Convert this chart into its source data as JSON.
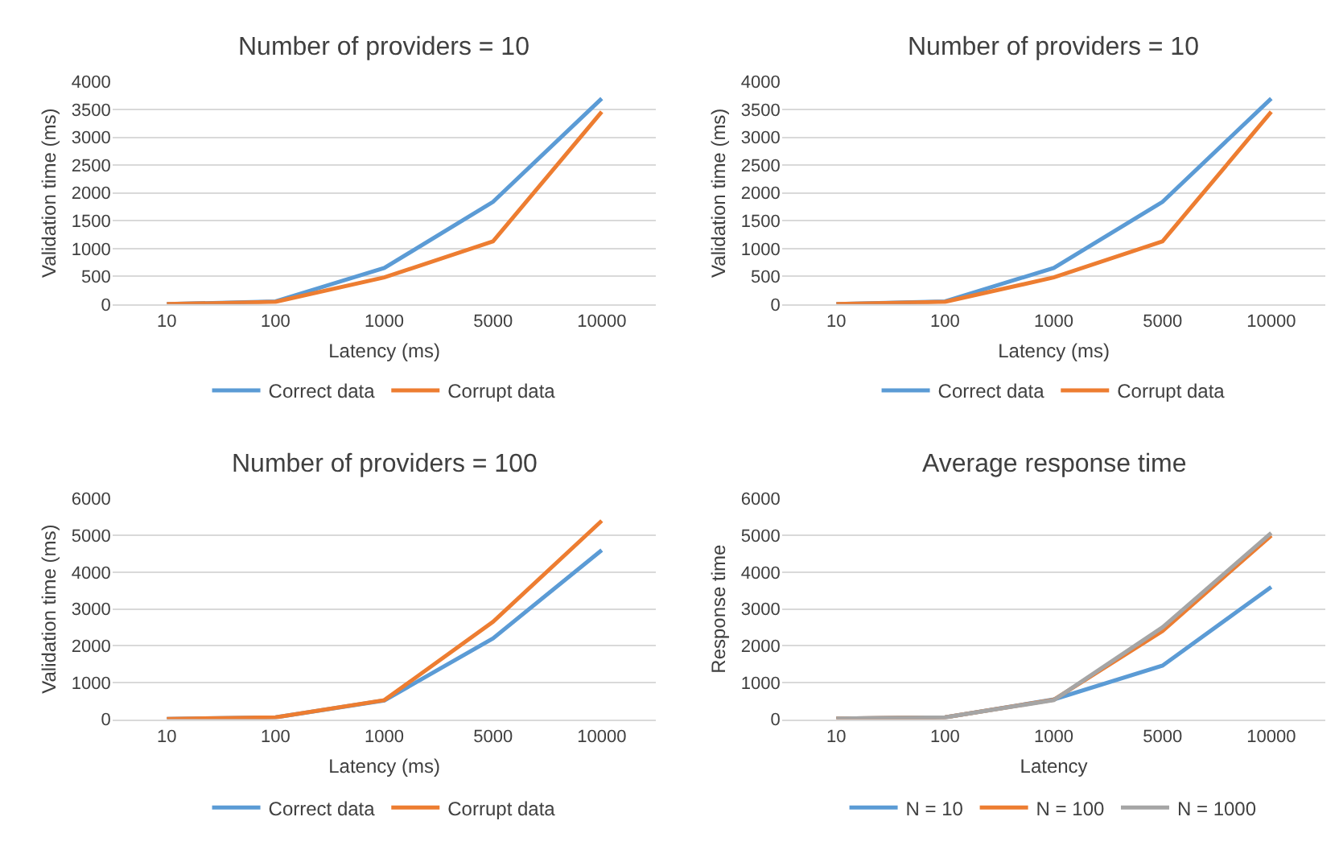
{
  "chart_data": [
    {
      "type": "line",
      "title": "Number of providers = 10",
      "xlabel": "Latency (ms)",
      "ylabel": "Validation time (ms)",
      "categories": [
        "10",
        "100",
        "1000",
        "5000",
        "10000"
      ],
      "ylim": [
        0,
        4000
      ],
      "yticks": [
        0,
        500,
        1000,
        1500,
        2000,
        2500,
        3000,
        3500,
        4000
      ],
      "grid": "y",
      "legend": "bottom",
      "series": [
        {
          "name": "Correct data",
          "color": "#5b9bd5",
          "values": [
            0,
            50,
            650,
            1840,
            3700
          ]
        },
        {
          "name": "Corrupt data",
          "color": "#ed7d31",
          "values": [
            0,
            40,
            480,
            1130,
            3460
          ]
        }
      ]
    },
    {
      "type": "line",
      "title": "Number of providers = 10",
      "xlabel": "Latency (ms)",
      "ylabel": "Validation time (ms)",
      "categories": [
        "10",
        "100",
        "1000",
        "5000",
        "10000"
      ],
      "ylim": [
        0,
        4000
      ],
      "yticks": [
        0,
        500,
        1000,
        1500,
        2000,
        2500,
        3000,
        3500,
        4000
      ],
      "grid": "y",
      "legend": "bottom",
      "series": [
        {
          "name": "Correct data",
          "color": "#5b9bd5",
          "values": [
            0,
            50,
            650,
            1840,
            3700
          ]
        },
        {
          "name": "Corrupt data",
          "color": "#ed7d31",
          "values": [
            0,
            40,
            480,
            1130,
            3460
          ]
        }
      ]
    },
    {
      "type": "line",
      "title": "Number of providers = 100",
      "xlabel": "Latency (ms)",
      "ylabel": "Validation time (ms)",
      "categories": [
        "10",
        "100",
        "1000",
        "5000",
        "10000"
      ],
      "ylim": [
        0,
        6000
      ],
      "yticks": [
        0,
        1000,
        2000,
        3000,
        4000,
        5000,
        6000
      ],
      "grid": "y",
      "legend": "bottom",
      "series": [
        {
          "name": "Correct data",
          "color": "#5b9bd5",
          "values": [
            10,
            50,
            510,
            2200,
            4600
          ]
        },
        {
          "name": "Corrupt data",
          "color": "#ed7d31",
          "values": [
            10,
            50,
            520,
            2650,
            5400
          ]
        }
      ]
    },
    {
      "type": "line",
      "title": "Average response time",
      "xlabel": "Latency",
      "ylabel": "Response time",
      "categories": [
        "10",
        "100",
        "1000",
        "5000",
        "10000"
      ],
      "ylim": [
        0,
        6000
      ],
      "yticks": [
        0,
        1000,
        2000,
        3000,
        4000,
        5000,
        6000
      ],
      "grid": "y",
      "legend": "bottom",
      "series": [
        {
          "name": "N = 10",
          "color": "#5b9bd5",
          "values": [
            20,
            50,
            540,
            1460,
            3600
          ]
        },
        {
          "name": "N = 100",
          "color": "#ed7d31",
          "values": [
            20,
            50,
            530,
            2400,
            5000
          ]
        },
        {
          "name": "N = 1000",
          "color": "#a5a5a5",
          "values": [
            20,
            50,
            520,
            2500,
            5070
          ]
        }
      ]
    }
  ]
}
